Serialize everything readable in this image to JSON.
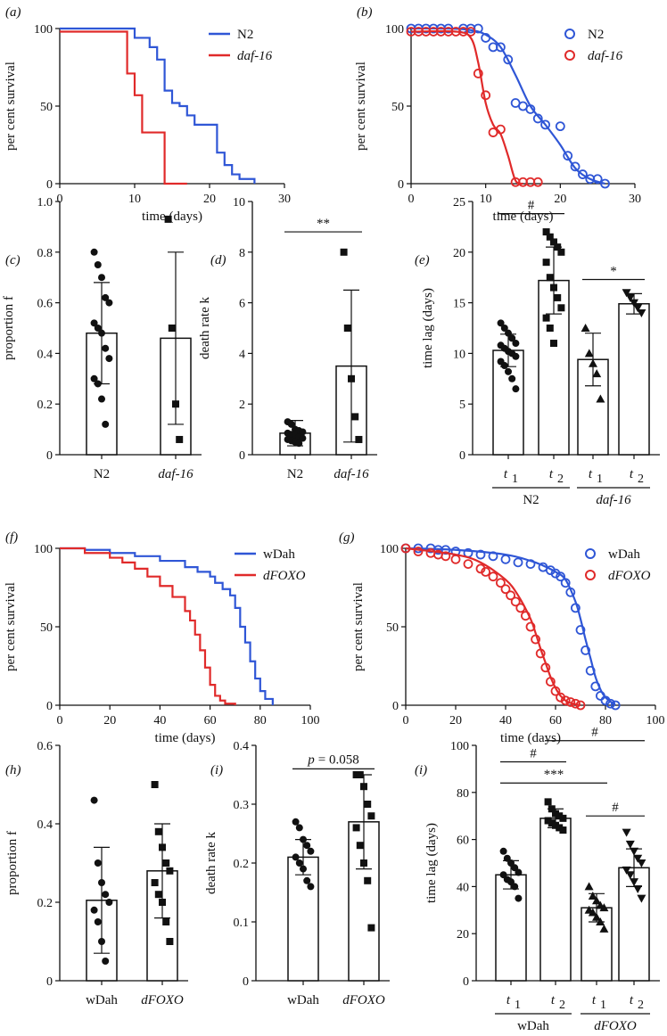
{
  "chart_data": [
    {
      "panel": "a",
      "label": "(a)",
      "type": "line",
      "step": true,
      "xlabel": "time (days)",
      "ylabel": "per cent survival",
      "xlim": [
        0,
        30
      ],
      "ylim": [
        0,
        100
      ],
      "xticks": [
        0,
        10,
        20,
        30
      ],
      "yticks": [
        0,
        50,
        100
      ],
      "legend_position": "top-right",
      "series": [
        {
          "name": "N2",
          "italic": false,
          "color": "#2f56d6",
          "x": [
            0,
            9,
            10,
            12,
            13,
            14,
            15,
            16,
            17,
            18,
            21,
            22,
            23,
            24,
            26
          ],
          "y": [
            100,
            100,
            94,
            88,
            80,
            60,
            52,
            50,
            44,
            38,
            20,
            12,
            6,
            3,
            0
          ]
        },
        {
          "name": "daf-16",
          "italic": true,
          "color": "#e02a2a",
          "x": [
            0,
            9,
            10,
            11,
            14,
            17
          ],
          "y": [
            98,
            71,
            57,
            33,
            0,
            0
          ]
        }
      ]
    },
    {
      "panel": "b",
      "label": "(b)",
      "type": "scatter",
      "xlabel": "time (days)",
      "ylabel": "per cent survival",
      "xlim": [
        0,
        30
      ],
      "ylim": [
        0,
        100
      ],
      "xticks": [
        0,
        10,
        20,
        30
      ],
      "yticks": [
        0,
        50,
        100
      ],
      "legend_position": "top-right",
      "series": [
        {
          "name": "N2",
          "italic": false,
          "color": "#2f56d6",
          "x": [
            0,
            1,
            2,
            3,
            4,
            5,
            7,
            8,
            9,
            10,
            11,
            12,
            13,
            14,
            15,
            16,
            17,
            18,
            20,
            21,
            22,
            23,
            24,
            25,
            26
          ],
          "y": [
            100,
            100,
            100,
            100,
            100,
            100,
            100,
            100,
            100,
            94,
            88,
            88,
            80,
            52,
            50,
            48,
            42,
            38,
            37,
            18,
            11,
            6,
            3,
            3,
            0
          ],
          "fit_x": [
            0,
            5,
            8,
            10,
            12,
            14,
            16,
            18,
            20,
            22,
            24,
            26
          ],
          "fit_y": [
            100,
            100,
            99,
            96,
            88,
            70,
            50,
            38,
            25,
            10,
            3,
            0
          ]
        },
        {
          "name": "daf-16",
          "italic": true,
          "color": "#e02a2a",
          "x": [
            0,
            1,
            2,
            3,
            4,
            5,
            6,
            7,
            8,
            9,
            10,
            11,
            12,
            14,
            15,
            16,
            17
          ],
          "y": [
            98,
            98,
            98,
            98,
            98,
            98,
            98,
            98,
            98,
            71,
            57,
            33,
            35,
            1,
            1,
            1,
            1
          ],
          "fit_x": [
            0,
            6,
            8,
            9,
            10,
            11,
            12,
            13,
            14,
            15
          ],
          "fit_y": [
            98,
            98,
            94,
            78,
            52,
            38,
            32,
            18,
            2,
            0
          ]
        }
      ]
    },
    {
      "panel": "c",
      "label": "(c)",
      "type": "bar",
      "ylabel": "proportion f",
      "ylim": [
        0,
        1.0
      ],
      "yticks": [
        "0",
        "0.2",
        "0.4",
        "0.6",
        "0.8",
        "1.0"
      ],
      "categories": [
        "N2",
        "daf-16"
      ],
      "category_italic": [
        false,
        true
      ],
      "values": [
        0.48,
        0.46
      ],
      "sd": [
        0.2,
        0.34
      ],
      "markers": [
        "circle",
        "square"
      ],
      "points": [
        [
          0.8,
          0.75,
          0.7,
          0.62,
          0.6,
          0.52,
          0.5,
          0.48,
          0.42,
          0.38,
          0.3,
          0.28,
          0.22,
          0.12
        ],
        [
          0.93,
          0.5,
          0.2,
          0.06
        ]
      ]
    },
    {
      "panel": "d",
      "label": "(d)",
      "type": "bar",
      "ylabel": "death rate k",
      "ylim": [
        0,
        10
      ],
      "yticks": [
        "0",
        "2",
        "4",
        "6",
        "8",
        "10"
      ],
      "categories": [
        "N2",
        "daf-16"
      ],
      "category_italic": [
        false,
        true
      ],
      "values": [
        0.85,
        3.5
      ],
      "sd": [
        0.5,
        3.0
      ],
      "markers": [
        "circle",
        "square"
      ],
      "points": [
        [
          1.3,
          1.2,
          1.0,
          0.95,
          0.9,
          0.85,
          0.8,
          0.75,
          0.7,
          0.65,
          0.6,
          0.55,
          0.5,
          0.45
        ],
        [
          8.0,
          5.0,
          3.0,
          1.5,
          0.6
        ]
      ],
      "annotations": [
        {
          "text": "**",
          "from": 0,
          "to": 1,
          "y": 8.8
        }
      ]
    },
    {
      "panel": "e",
      "label": "(e)",
      "type": "bar",
      "ylabel": "time lag (days)",
      "ylim": [
        0,
        25
      ],
      "yticks": [
        "0",
        "5",
        "10",
        "15",
        "20",
        "25"
      ],
      "categories": [
        "t1",
        "t2",
        "t1",
        "t2"
      ],
      "category_main": [
        "t",
        "t",
        "t",
        "t"
      ],
      "category_sub": [
        "1",
        "2",
        "1",
        "2"
      ],
      "groups": [
        {
          "name": "N2",
          "italic": false,
          "from": 0,
          "to": 1
        },
        {
          "name": "daf-16",
          "italic": true,
          "from": 2,
          "to": 3
        }
      ],
      "values": [
        10.3,
        17.2,
        9.4,
        14.9
      ],
      "sd": [
        1.6,
        3.3,
        2.6,
        1.0
      ],
      "markers": [
        "circle",
        "square",
        "triangle",
        "inverted-triangle"
      ],
      "points": [
        [
          13.0,
          12.5,
          12.0,
          11.5,
          11.0,
          10.8,
          10.5,
          10.2,
          10.0,
          9.7,
          9.2,
          8.8,
          8.2,
          7.5,
          6.5
        ],
        [
          22.0,
          21.5,
          21.0,
          20.5,
          20.0,
          19.0,
          17.5,
          16.5,
          15.5,
          14.5,
          13.5,
          12.5,
          11.0
        ],
        [
          12.5,
          10.0,
          9.0,
          8.0,
          5.5
        ],
        [
          16.0,
          15.5,
          15.0,
          14.5,
          14.0
        ]
      ],
      "annotations": [
        {
          "text": "#",
          "from": 0,
          "to": 1,
          "y": 23.8
        },
        {
          "text": "*",
          "from": 2,
          "to": 3,
          "y": 17.3
        }
      ]
    },
    {
      "panel": "f",
      "label": "(f)",
      "type": "line",
      "step": true,
      "xlabel": "time (days)",
      "ylabel": "per cent survival",
      "xlim": [
        0,
        100
      ],
      "ylim": [
        0,
        100
      ],
      "xticks": [
        0,
        20,
        40,
        60,
        80,
        100
      ],
      "yticks": [
        0,
        50,
        100
      ],
      "legend_position": "top-right",
      "series": [
        {
          "name": "wDah",
          "italic": false,
          "color": "#2f56d6",
          "x": [
            0,
            10,
            20,
            30,
            40,
            50,
            55,
            60,
            62,
            65,
            68,
            70,
            72,
            74,
            76,
            78,
            80,
            82,
            85
          ],
          "y": [
            100,
            99,
            97,
            95,
            92,
            88,
            85,
            82,
            78,
            74,
            70,
            62,
            50,
            40,
            28,
            17,
            9,
            4,
            0
          ]
        },
        {
          "name": "dFOXO",
          "italic": true,
          "color": "#e02a2a",
          "x": [
            0,
            10,
            20,
            25,
            30,
            35,
            40,
            45,
            50,
            52,
            54,
            56,
            58,
            60,
            62,
            64,
            66,
            70
          ],
          "y": [
            100,
            97,
            94,
            91,
            87,
            82,
            76,
            69,
            60,
            54,
            45,
            35,
            24,
            13,
            6,
            3,
            1,
            0
          ]
        }
      ]
    },
    {
      "panel": "g",
      "label": "(g)",
      "type": "scatter",
      "xlabel": "time (days)",
      "ylabel": "per cent survival",
      "xlim": [
        0,
        100
      ],
      "ylim": [
        0,
        100
      ],
      "xticks": [
        0,
        20,
        40,
        60,
        80,
        100
      ],
      "yticks": [
        0,
        50,
        100
      ],
      "legend_position": "top-right",
      "series": [
        {
          "name": "wDah",
          "italic": false,
          "color": "#2f56d6",
          "x": [
            0,
            5,
            10,
            13,
            16,
            20,
            25,
            30,
            35,
            40,
            45,
            50,
            55,
            58,
            60,
            62,
            64,
            66,
            68,
            70,
            72,
            74,
            76,
            78,
            80,
            82,
            84
          ],
          "y": [
            100,
            100,
            100,
            99,
            99,
            98,
            97,
            96,
            95,
            93,
            91,
            90,
            88,
            86,
            84,
            82,
            78,
            72,
            62,
            48,
            35,
            22,
            12,
            6,
            3,
            1,
            0
          ],
          "fit_x": [
            0,
            20,
            40,
            50,
            55,
            60,
            64,
            68,
            70,
            72,
            74,
            76,
            78,
            80,
            84
          ],
          "fit_y": [
            100,
            99,
            96,
            92,
            89,
            85,
            80,
            66,
            55,
            42,
            30,
            18,
            10,
            5,
            0
          ]
        },
        {
          "name": "dFOXO",
          "italic": true,
          "color": "#e02a2a",
          "x": [
            0,
            5,
            10,
            13,
            16,
            20,
            25,
            30,
            32,
            35,
            38,
            40,
            42,
            44,
            46,
            48,
            50,
            52,
            54,
            56,
            58,
            60,
            62,
            64,
            66,
            68,
            70
          ],
          "y": [
            100,
            98,
            97,
            96,
            95,
            93,
            90,
            87,
            85,
            82,
            78,
            74,
            70,
            66,
            62,
            57,
            50,
            42,
            33,
            24,
            15,
            9,
            5,
            3,
            2,
            1,
            0
          ],
          "fit_x": [
            0,
            20,
            30,
            40,
            45,
            50,
            52,
            54,
            56,
            58,
            60,
            62,
            65,
            70
          ],
          "fit_y": [
            100,
            96,
            91,
            80,
            70,
            55,
            46,
            36,
            27,
            18,
            11,
            6,
            2,
            0
          ]
        }
      ]
    },
    {
      "panel": "h",
      "label": "(h)",
      "type": "bar",
      "ylabel": "proportion f",
      "ylim": [
        0,
        0.6
      ],
      "yticks": [
        "0",
        "0.2",
        "0.4",
        "0.6"
      ],
      "categories": [
        "wDah",
        "dFOXO"
      ],
      "category_italic": [
        false,
        true
      ],
      "values": [
        0.205,
        0.28
      ],
      "sd": [
        0.135,
        0.12
      ],
      "markers": [
        "circle",
        "square"
      ],
      "points": [
        [
          0.46,
          0.3,
          0.25,
          0.22,
          0.2,
          0.18,
          0.15,
          0.1,
          0.05
        ],
        [
          0.5,
          0.38,
          0.34,
          0.3,
          0.28,
          0.25,
          0.22,
          0.2,
          0.15,
          0.1
        ]
      ]
    },
    {
      "panel": "i1",
      "label": "(i)",
      "type": "bar",
      "ylabel": "death rate k",
      "ylim": [
        0,
        0.4
      ],
      "yticks": [
        "0",
        "0.1",
        "0.2",
        "0.3",
        "0.4"
      ],
      "categories": [
        "wDah",
        "dFOXO"
      ],
      "category_italic": [
        false,
        true
      ],
      "values": [
        0.21,
        0.27
      ],
      "sd": [
        0.03,
        0.08
      ],
      "markers": [
        "circle",
        "square"
      ],
      "points": [
        [
          0.27,
          0.26,
          0.24,
          0.23,
          0.22,
          0.21,
          0.2,
          0.19,
          0.17,
          0.16
        ],
        [
          0.35,
          0.35,
          0.33,
          0.3,
          0.28,
          0.26,
          0.23,
          0.2,
          0.17,
          0.09
        ]
      ],
      "annotation_label": {
        "prefix": "p",
        "value": "= 0.058"
      },
      "annotations": [
        {
          "text": "",
          "from": 0,
          "to": 1,
          "y": 0.36
        }
      ]
    },
    {
      "panel": "i2",
      "label": "(i)",
      "type": "bar",
      "ylabel": "time lag (days)",
      "ylim": [
        0,
        100
      ],
      "yticks": [
        "0",
        "20",
        "40",
        "60",
        "80",
        "100"
      ],
      "categories": [
        "t1",
        "t2",
        "t1",
        "t2"
      ],
      "category_main": [
        "t",
        "t",
        "t",
        "t"
      ],
      "category_sub": [
        "1",
        "2",
        "1",
        "2"
      ],
      "groups": [
        {
          "name": "wDah",
          "italic": false,
          "from": 0,
          "to": 1
        },
        {
          "name": "dFOXO",
          "italic": true,
          "from": 2,
          "to": 3
        }
      ],
      "values": [
        45,
        69,
        31,
        48
      ],
      "sd": [
        6,
        4,
        6,
        8
      ],
      "markers": [
        "circle",
        "square",
        "triangle",
        "inverted-triangle"
      ],
      "points": [
        [
          55,
          52,
          50,
          48,
          46,
          45,
          43,
          42,
          40,
          35
        ],
        [
          76,
          73,
          71,
          70,
          69,
          68,
          67,
          66,
          65,
          64
        ],
        [
          40,
          36,
          34,
          32,
          31,
          30,
          29,
          27,
          25,
          22
        ],
        [
          63,
          58,
          55,
          52,
          50,
          47,
          45,
          42,
          39,
          35
        ]
      ],
      "annotations": [
        {
          "text": "#",
          "from": 0,
          "to": 1,
          "y": 93
        },
        {
          "text": "#",
          "from": 1,
          "to": 3,
          "y": 102
        },
        {
          "text": "***",
          "from": 0,
          "to": 2,
          "y": 84
        },
        {
          "text": "#",
          "from": 2,
          "to": 3,
          "y": 70
        }
      ]
    }
  ]
}
